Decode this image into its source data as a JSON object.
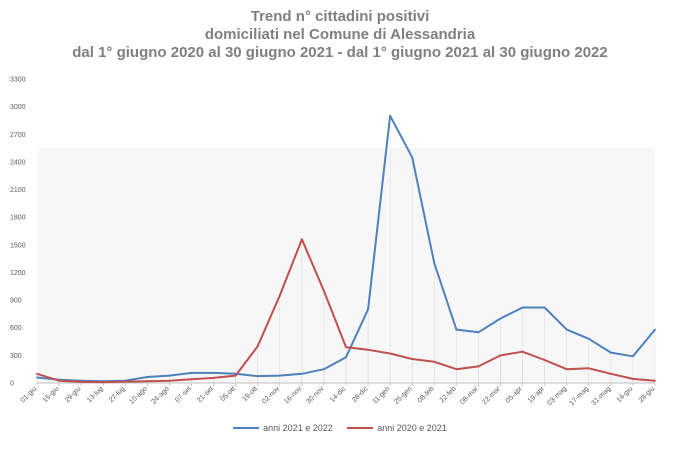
{
  "chart_data": {
    "type": "line",
    "title": [
      "Trend n° cittadini positivi",
      "domiciliati nel Comune di Alessandria",
      "dal 1° giugno 2020 al 30 giugno 2021 - dal 1° giugno 2021 al 30 giugno 2022"
    ],
    "xlabel": "",
    "ylabel": "",
    "ylim": [
      0,
      3300
    ],
    "yticks": [
      0,
      300,
      600,
      900,
      1200,
      1500,
      1800,
      2100,
      2400,
      2700,
      3000,
      3300
    ],
    "categories": [
      "01-giu",
      "15-giu",
      "29-giu",
      "13-lug",
      "27-lug",
      "10-ago",
      "24-ago",
      "07-set",
      "21-set",
      "05-ott",
      "19-ott",
      "02-nov",
      "16-nov",
      "30-nov",
      "14-dic",
      "28-dic",
      "11-gen",
      "25-gen",
      "08-feb",
      "22-feb",
      "08-mar",
      "22-mar",
      "05-apr",
      "19-apr",
      "03-mag",
      "17-mag",
      "31-mag",
      "14-giu",
      "28-giu"
    ],
    "grid": false,
    "legend_position": "bottom",
    "series": [
      {
        "name": "anni 2021 e 2022",
        "color": "#4f81bd",
        "values": [
          60,
          35,
          25,
          20,
          25,
          65,
          80,
          110,
          110,
          100,
          75,
          80,
          100,
          150,
          280,
          800,
          2900,
          2450,
          1300,
          580,
          550,
          700,
          820,
          820,
          580,
          480,
          330,
          290,
          580
        ]
      },
      {
        "name": "anni 2020 e 2021",
        "color": "#c0504d",
        "values": [
          100,
          25,
          12,
          10,
          15,
          20,
          25,
          40,
          55,
          80,
          400,
          950,
          1560,
          1000,
          390,
          360,
          320,
          260,
          230,
          150,
          180,
          300,
          340,
          250,
          150,
          160,
          100,
          45,
          25
        ]
      }
    ]
  }
}
